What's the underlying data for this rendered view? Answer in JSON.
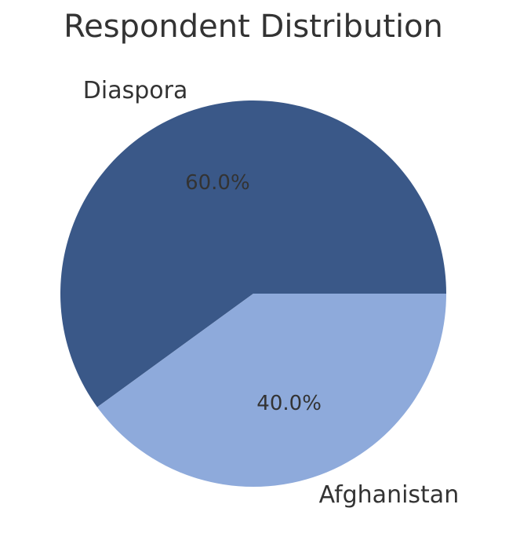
{
  "chart_data": {
    "type": "pie",
    "title": "Respondent Distribution",
    "categories": [
      "Diaspora",
      "Afghanistan"
    ],
    "values": [
      60,
      40
    ],
    "value_labels": [
      "60.0%",
      "40.0%"
    ],
    "colors": [
      "#3a5888",
      "#8eaadb"
    ]
  }
}
